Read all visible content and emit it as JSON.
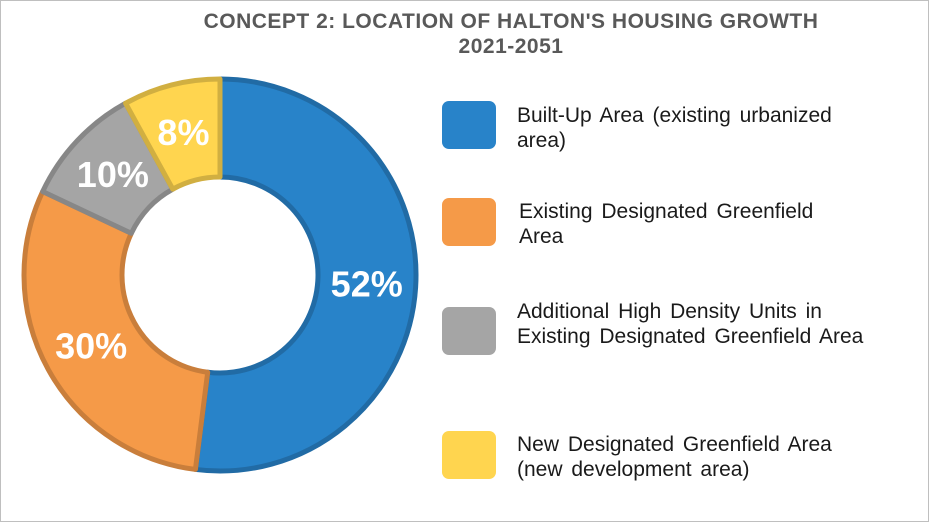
{
  "chart_data": {
    "type": "pie",
    "title_lines": [
      "CONCEPT 2: LOCATION OF HALTON'S HOUSING GROWTH",
      "2021-2051"
    ],
    "slices": [
      {
        "label": "Built-Up Area (existing urbanized area)",
        "value": 52,
        "display": "52%",
        "color": "#2883c9"
      },
      {
        "label": "Existing Designated Greenfield Area",
        "value": 30,
        "display": "30%",
        "color": "#f59a48"
      },
      {
        "label": "Additional High Density Units in Existing Designated Greenfield Area",
        "value": 10,
        "display": "10%",
        "color": "#a5a5a5"
      },
      {
        "label": "New Designated Greenfield Area (new development area)",
        "value": 8,
        "display": "8%",
        "color": "#ffd54f"
      }
    ],
    "legend_position": "right",
    "legend": [
      {
        "lines": [
          "Built-Up Area (existing urbanized",
          "area)"
        ],
        "color": "#2883c9"
      },
      {
        "lines": [
          "Existing Designated Greenfield",
          "Area"
        ],
        "color": "#f59a48"
      },
      {
        "lines": [
          "Additional High Density Units in",
          "Existing Designated Greenfield Area"
        ],
        "color": "#a5a5a5"
      },
      {
        "lines": [
          "New Designated Greenfield Area",
          "(new development area)"
        ],
        "color": "#ffd54f"
      }
    ]
  }
}
